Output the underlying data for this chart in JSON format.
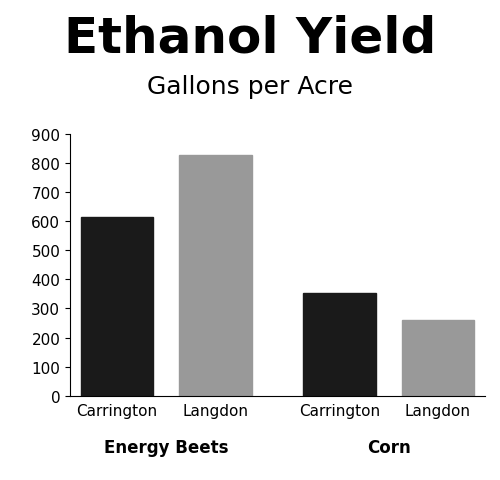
{
  "title": "Ethanol Yield",
  "subtitle": "Gallons per Acre",
  "bars": [
    {
      "label": "Carrington",
      "value": 614,
      "color": "#1a1a1a",
      "group": "Energy Beets"
    },
    {
      "label": "Langdon",
      "value": 826,
      "color": "#999999",
      "group": "Energy Beets"
    },
    {
      "label": "Carrington",
      "value": 354,
      "color": "#1a1a1a",
      "group": "Corn"
    },
    {
      "label": "Langdon",
      "value": 262,
      "color": "#999999",
      "group": "Corn"
    }
  ],
  "ylim": [
    0,
    900
  ],
  "yticks": [
    0,
    100,
    200,
    300,
    400,
    500,
    600,
    700,
    800,
    900
  ],
  "group_labels": [
    "Energy Beets",
    "Corn"
  ],
  "group_label_fontsize": 12,
  "bar_label_fontsize": 11,
  "title_fontsize": 36,
  "subtitle_fontsize": 18,
  "background_color": "#ffffff",
  "bar_width": 0.85,
  "positions": [
    0,
    1.15,
    2.6,
    3.75
  ]
}
